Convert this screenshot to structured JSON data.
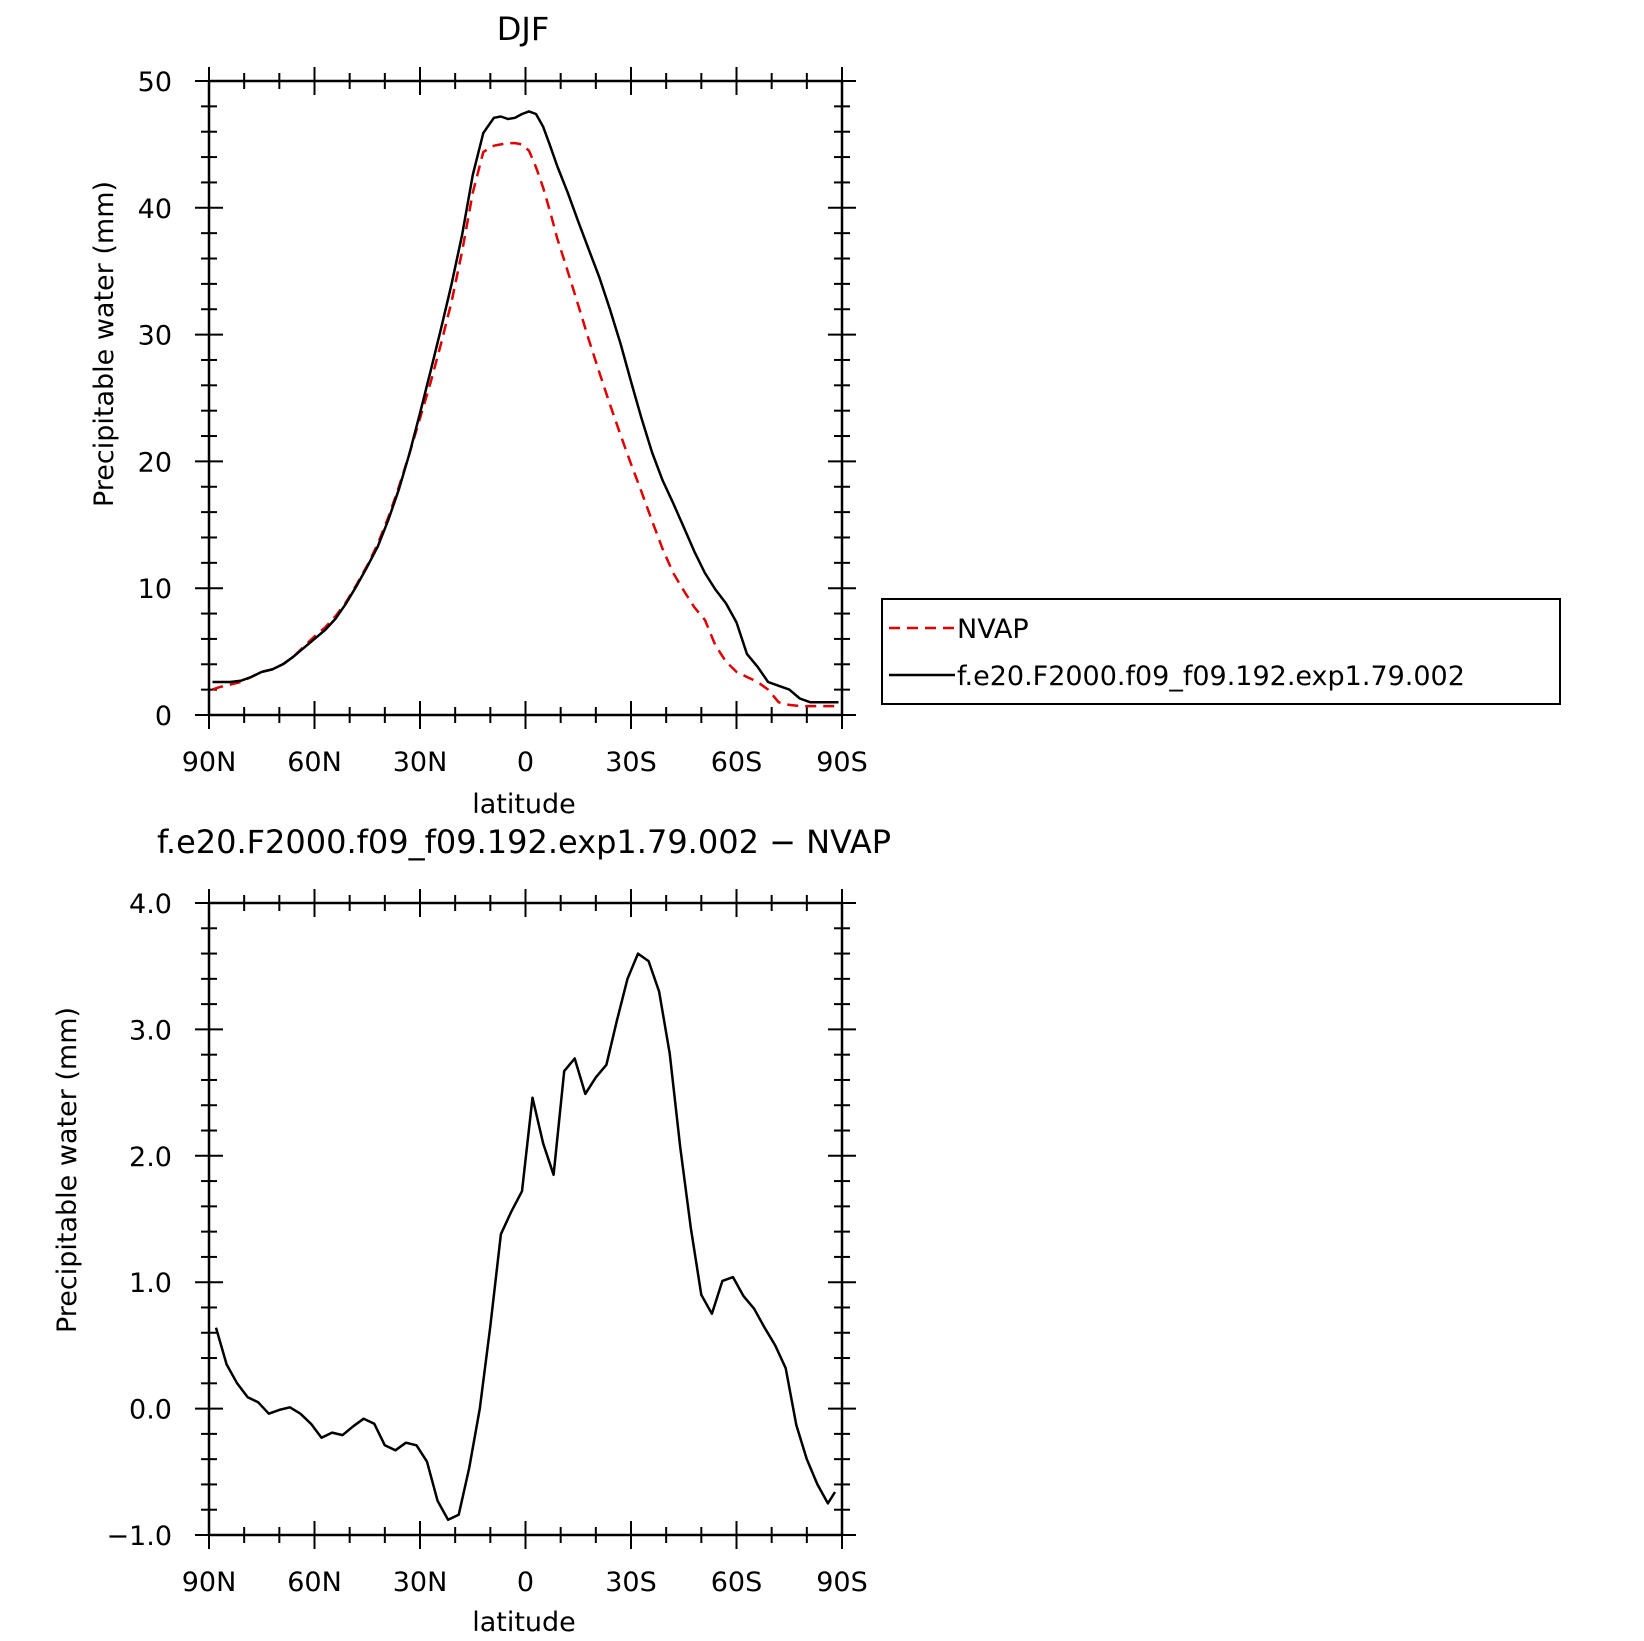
{
  "chart_data": [
    {
      "type": "line",
      "title": "DJF",
      "xlabel": "latitude",
      "ylabel": "Precipitable water (mm)",
      "xlim": [
        90,
        -90
      ],
      "ylim": [
        0,
        50
      ],
      "x_ticks": [
        {
          "value": 90,
          "label": "90N"
        },
        {
          "value": 60,
          "label": "60N"
        },
        {
          "value": 30,
          "label": "30N"
        },
        {
          "value": 0,
          "label": "0"
        },
        {
          "value": -30,
          "label": "30S"
        },
        {
          "value": -60,
          "label": "60S"
        },
        {
          "value": -90,
          "label": "90S"
        }
      ],
      "y_ticks": [
        {
          "value": 0,
          "label": "0"
        },
        {
          "value": 10,
          "label": "10"
        },
        {
          "value": 20,
          "label": "20"
        },
        {
          "value": 30,
          "label": "30"
        },
        {
          "value": 40,
          "label": "40"
        },
        {
          "value": 50,
          "label": "50"
        }
      ],
      "legend": {
        "placement": "right"
      },
      "series": [
        {
          "name": "NVAP",
          "color": "#e00000",
          "style": "dashed",
          "x": [
            89,
            87,
            84,
            81,
            78,
            75,
            72,
            69,
            66,
            63,
            60,
            57,
            54,
            51,
            48,
            45,
            42,
            39,
            36,
            33,
            30,
            27,
            24,
            21,
            18,
            15,
            12,
            9,
            7,
            5,
            3,
            1,
            -1,
            -3,
            -5,
            -7,
            -9,
            -12,
            -15,
            -18,
            -21,
            -24,
            -27,
            -30,
            -33,
            -36,
            -39,
            -42,
            -45,
            -48,
            -51,
            -54,
            -57,
            -60,
            -63,
            -66,
            -69,
            -72,
            -75,
            -78,
            -81,
            -84,
            -87,
            -89
          ],
          "y": [
            2.0,
            2.2,
            2.4,
            2.6,
            3.0,
            3.4,
            3.6,
            4.0,
            4.6,
            5.4,
            6.2,
            6.9,
            7.8,
            8.9,
            10.3,
            11.8,
            13.5,
            15.6,
            18.0,
            20.6,
            23.4,
            26.2,
            29.3,
            32.6,
            36.6,
            41.2,
            44.4,
            44.9,
            45.0,
            45.1,
            45.1,
            45.0,
            44.5,
            43.2,
            41.6,
            39.7,
            37.6,
            35.0,
            32.3,
            29.6,
            27.0,
            24.5,
            22.1,
            19.8,
            17.6,
            15.3,
            13.1,
            11.2,
            9.8,
            8.5,
            7.5,
            5.5,
            4.2,
            3.4,
            3.0,
            2.6,
            2.0,
            1.0,
            0.8,
            0.7,
            0.7,
            0.7,
            0.7,
            0.7
          ]
        },
        {
          "name": "f.e20.F2000.f09_f09.192.exp1.79.002",
          "color": "#000000",
          "style": "solid",
          "x": [
            89,
            87,
            84,
            81,
            78,
            75,
            72,
            69,
            66,
            63,
            60,
            57,
            54,
            51,
            48,
            45,
            42,
            39,
            36,
            33,
            30,
            27,
            24,
            21,
            18,
            15,
            12,
            9,
            7,
            5,
            3,
            1,
            -1,
            -3,
            -5,
            -7,
            -9,
            -12,
            -15,
            -18,
            -21,
            -24,
            -27,
            -30,
            -33,
            -36,
            -39,
            -42,
            -45,
            -48,
            -51,
            -54,
            -57,
            -60,
            -63,
            -66,
            -69,
            -72,
            -75,
            -78,
            -81,
            -84,
            -87,
            -89
          ],
          "y": [
            2.6,
            2.6,
            2.6,
            2.7,
            3.0,
            3.4,
            3.6,
            4.0,
            4.6,
            5.3,
            6.0,
            6.7,
            7.6,
            8.8,
            10.2,
            11.7,
            13.3,
            15.4,
            17.8,
            20.6,
            23.8,
            27.1,
            30.5,
            34.0,
            37.9,
            42.6,
            45.9,
            47.1,
            47.2,
            47.0,
            47.1,
            47.4,
            47.6,
            47.4,
            46.4,
            44.9,
            43.3,
            41.2,
            38.9,
            36.7,
            34.5,
            32.0,
            29.3,
            26.3,
            23.4,
            20.7,
            18.5,
            16.7,
            14.8,
            12.9,
            11.2,
            9.9,
            8.8,
            7.3,
            4.8,
            3.8,
            2.6,
            2.3,
            2.0,
            1.3,
            1.0,
            1.0,
            1.0,
            1.0
          ]
        }
      ]
    },
    {
      "type": "line",
      "title": "f.e20.F2000.f09_f09.192.exp1.79.002 − NVAP",
      "xlabel": "latitude",
      "ylabel": "Precipitable water (mm)",
      "xlim": [
        90,
        -90
      ],
      "ylim": [
        -1.0,
        4.0
      ],
      "x_ticks": [
        {
          "value": 90,
          "label": "90N"
        },
        {
          "value": 60,
          "label": "60N"
        },
        {
          "value": 30,
          "label": "30N"
        },
        {
          "value": 0,
          "label": "0"
        },
        {
          "value": -30,
          "label": "30S"
        },
        {
          "value": -60,
          "label": "60S"
        },
        {
          "value": -90,
          "label": "90S"
        }
      ],
      "y_ticks": [
        {
          "value": -1.0,
          "label": "−1.0"
        },
        {
          "value": 0.0,
          "label": "0.0"
        },
        {
          "value": 1.0,
          "label": "1.0"
        },
        {
          "value": 2.0,
          "label": "2.0"
        },
        {
          "value": 3.0,
          "label": "3.0"
        },
        {
          "value": 4.0,
          "label": "4.0"
        }
      ],
      "series": [
        {
          "color": "#000000",
          "style": "solid",
          "x": [
            88,
            85,
            82,
            79,
            76,
            73,
            70,
            67,
            64,
            61,
            58,
            55,
            52,
            49,
            46,
            43,
            40,
            37,
            34,
            31,
            28,
            25,
            22,
            19,
            16,
            13,
            10,
            7,
            4,
            1,
            -2,
            -5,
            -8,
            -11,
            -14,
            -17,
            -20,
            -23,
            -26,
            -29,
            -32,
            -35,
            -38,
            -41,
            -44,
            -47,
            -50,
            -53,
            -56,
            -59,
            -62,
            -65,
            -68,
            -71,
            -74,
            -77,
            -80,
            -83,
            -86,
            -88
          ],
          "y": [
            0.64,
            0.35,
            0.2,
            0.09,
            0.05,
            -0.04,
            -0.01,
            0.01,
            -0.04,
            -0.12,
            -0.23,
            -0.19,
            -0.21,
            -0.14,
            -0.08,
            -0.12,
            -0.29,
            -0.33,
            -0.27,
            -0.29,
            -0.42,
            -0.73,
            -0.88,
            -0.84,
            -0.47,
            0.0,
            0.65,
            1.38,
            1.56,
            1.72,
            2.46,
            2.1,
            1.85,
            2.67,
            2.77,
            2.49,
            2.62,
            2.72,
            3.07,
            3.4,
            3.6,
            3.54,
            3.3,
            2.81,
            2.07,
            1.43,
            0.9,
            0.75,
            1.01,
            1.04,
            0.89,
            0.79,
            0.64,
            0.5,
            0.32,
            -0.13,
            -0.4,
            -0.6,
            -0.75,
            -0.66
          ]
        }
      ]
    }
  ]
}
